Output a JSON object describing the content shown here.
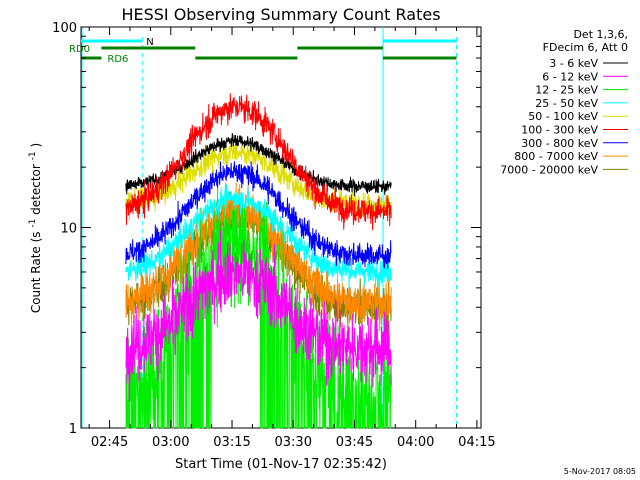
{
  "chart_data": {
    "type": "line",
    "title": "HESSI Observing Summary Count Rates",
    "xlabel": "Start Time (01-Nov-17 02:35:42)",
    "ylabel_main": "Count Rate (s",
    "ylabel_exp1": "-1",
    "ylabel_mid": " detector",
    "ylabel_exp2": "-1",
    "ylabel_end": ")",
    "y_scale": "log",
    "ylim": [
      1,
      100
    ],
    "xlim_minutes": [
      "02:38",
      "04:16"
    ],
    "x_ticks": [
      {
        "label": "02:45",
        "minutes": 165
      },
      {
        "label": "03:00",
        "minutes": 180
      },
      {
        "label": "03:15",
        "minutes": 195
      },
      {
        "label": "03:30",
        "minutes": 210
      },
      {
        "label": "03:45",
        "minutes": 225
      },
      {
        "label": "04:00",
        "minutes": 240
      },
      {
        "label": "04:15",
        "minutes": 255
      }
    ],
    "y_ticks": [
      {
        "label": "1",
        "value": 1
      },
      {
        "label": "10",
        "value": 10
      },
      {
        "label": "100",
        "value": 100
      }
    ],
    "legend": {
      "placement": "top-right",
      "header": [
        "Det 1,3,6,",
        "FDecim 6, Att 0"
      ]
    },
    "series": [
      {
        "name": "3 - 6 keV",
        "color": "#000000",
        "base": 16,
        "peak": 27
      },
      {
        "name": "6 - 12 keV",
        "color": "#ff00ff",
        "base": 2.5,
        "peak": 6
      },
      {
        "name": "12 - 25 keV",
        "color": "#00ee00",
        "base": 1.6,
        "peak": 8
      },
      {
        "name": "25 - 50 keV",
        "color": "#00ffff",
        "base": 6.0,
        "peak": 14
      },
      {
        "name": "50 - 100 keV",
        "color": "#dddd00",
        "base": 13,
        "peak": 24
      },
      {
        "name": "100 - 300 keV",
        "color": "#ff0000",
        "base": 12,
        "peak": 40
      },
      {
        "name": "300 - 800 keV",
        "color": "#0000ff",
        "base": 7.2,
        "peak": 19
      },
      {
        "name": "800 - 7000 keV",
        "color": "#ff8800",
        "base": 4.2,
        "peak": 12
      },
      {
        "name": "7000 - 20000 keV",
        "color": "#808000",
        "base": 4.0,
        "peak": 11
      }
    ],
    "data_interval": [
      "02:49",
      "03:54"
    ],
    "flags": {
      "N": {
        "label": "N",
        "color": "#00ffff",
        "on": [
          [
            "02:38",
            "02:53"
          ],
          [
            "03:52",
            "04:10"
          ]
        ],
        "vlines": [
          "02:53",
          "03:52",
          "04:10"
        ]
      },
      "RD0": {
        "label": "RD0",
        "color": "#008000",
        "on": [
          [
            "02:43",
            "03:06"
          ],
          [
            "03:31",
            "03:52"
          ]
        ]
      },
      "RD6": {
        "label": "RD6",
        "color": "#008000",
        "on": [
          [
            "02:38",
            "02:43"
          ],
          [
            "03:06",
            "03:31"
          ],
          [
            "03:52",
            "04:10"
          ]
        ]
      }
    }
  },
  "footer": {
    "timestamp": "5-Nov-2017 08:05"
  }
}
